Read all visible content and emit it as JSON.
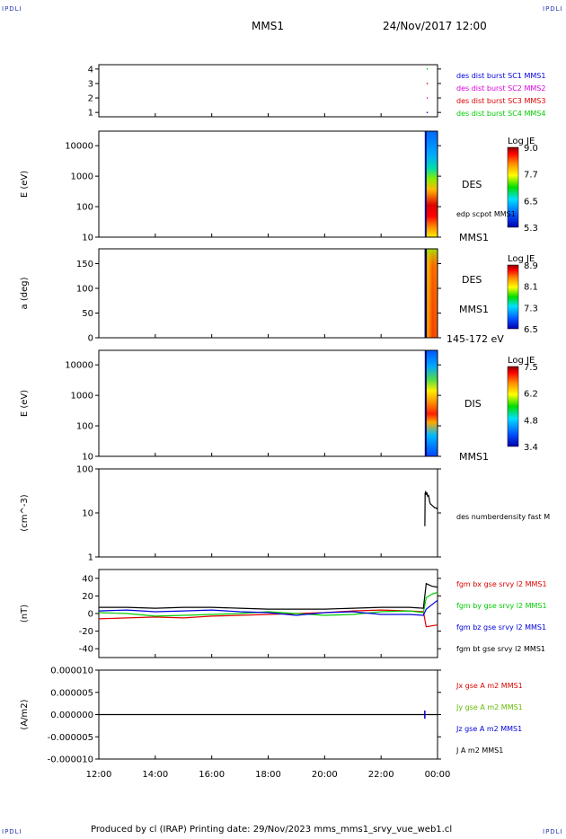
{
  "corner_label": "IPDLI",
  "header": {
    "spacecraft": "MMS1",
    "date_time": "24/Nov/2017 12:00"
  },
  "footer": {
    "text": "Produced by cl (IRAP)   Printing date: 29/Nov/2023   mms_mms1_srvy_vue_web1.cl"
  },
  "colors": {
    "mms1": "#0000dd",
    "mms2": "#dd00dd",
    "mms3": "#dd0000",
    "mms4": "#00cc00",
    "bx": "#dd0000",
    "by": "#00cc00",
    "bz": "#0000dd",
    "bt": "#000000"
  },
  "chart_data": [
    {
      "id": "p1",
      "type": "scatter",
      "yticks": [
        "1",
        "2",
        "3",
        "4"
      ],
      "ylim": [
        0.7,
        4.3
      ],
      "legend": [
        "des dist burst SC1 MMS1",
        "des dist burst SC2 MMS2",
        "des dist burst SC3 MMS3",
        "des dist burst SC4 MMS4"
      ],
      "series": [
        {
          "name": "des dist burst SC1 MMS1",
          "x": [
            23.7
          ],
          "y": [
            1
          ]
        },
        {
          "name": "des dist burst SC2 MMS2",
          "x": [
            23.7
          ],
          "y": [
            2
          ]
        },
        {
          "name": "des dist burst SC3 MMS3",
          "x": [
            23.7
          ],
          "y": [
            3
          ]
        },
        {
          "name": "des dist burst SC4 MMS4",
          "x": [
            23.7
          ],
          "y": [
            4
          ]
        }
      ]
    },
    {
      "id": "p2",
      "type": "heatmap",
      "ylabel": "E (eV)",
      "yticks": [
        "10",
        "100",
        "1000",
        "10000"
      ],
      "ylog": true,
      "ylim": [
        10,
        30000
      ],
      "label": "DES",
      "sublabel": "edp scpot MMS1",
      "bottom_label": "MMS1",
      "colorbar": {
        "title": "Log JE",
        "ticks": [
          "9.0",
          "7.7",
          "6.5",
          "5.3"
        ]
      },
      "x_range": [
        23.55,
        24.0
      ]
    },
    {
      "id": "p3",
      "type": "heatmap",
      "ylabel": "a (deg)",
      "yticks": [
        "0",
        "50",
        "100",
        "150"
      ],
      "ylim": [
        0,
        180
      ],
      "label": "DES",
      "sublabel": "MMS1",
      "bottom_label": "145-172 eV",
      "colorbar": {
        "title": "Log JE",
        "ticks": [
          "8.9",
          "8.1",
          "7.3",
          "6.5"
        ]
      },
      "x_range": [
        23.55,
        24.0
      ]
    },
    {
      "id": "p4",
      "type": "heatmap",
      "ylabel": "E (eV)",
      "yticks": [
        "10",
        "100",
        "1000",
        "10000"
      ],
      "ylog": true,
      "ylim": [
        10,
        30000
      ],
      "label": "DIS",
      "bottom_label": "MMS1",
      "colorbar": {
        "title": "Log JE",
        "ticks": [
          "7.5",
          "6.2",
          "4.8",
          "3.4"
        ]
      },
      "x_range": [
        23.55,
        24.0
      ]
    },
    {
      "id": "p5",
      "type": "line",
      "ylabel": "(cm^-3)",
      "yticks": [
        "1",
        "10",
        "100"
      ],
      "ylog": true,
      "ylim": [
        1,
        100
      ],
      "legend": [
        "des numberdensity fast M"
      ],
      "series": [
        {
          "name": "des numberdensity fast M",
          "x": [
            23.55,
            23.56,
            23.58,
            23.6,
            23.62,
            23.65,
            23.68,
            23.7,
            23.72,
            23.75,
            23.8,
            23.85,
            23.9,
            23.95,
            24.0
          ],
          "y": [
            5,
            28,
            30,
            26,
            29,
            24,
            25,
            22,
            18,
            16,
            15,
            14,
            13,
            13,
            12
          ]
        }
      ]
    },
    {
      "id": "p6",
      "type": "line",
      "ylabel": "(nT)",
      "yticks": [
        "-40",
        "-20",
        "0",
        "20",
        "40"
      ],
      "ylim": [
        -50,
        50
      ],
      "legend": [
        "fgm bx gse srvy l2 MMS1",
        "fgm by gse srvy l2 MMS1",
        "fgm bz gse srvy l2 MMS1",
        "fgm bt gse srvy l2 MMS1"
      ],
      "series": [
        {
          "name": "fgm bx gse srvy l2 MMS1",
          "x": [
            12,
            13,
            14,
            15,
            16,
            17,
            18,
            19,
            20,
            21,
            22,
            23,
            23.5,
            23.6,
            23.8,
            24
          ],
          "y": [
            -6,
            -5,
            -4,
            -5,
            -3,
            -2,
            -1,
            0,
            1,
            3,
            4,
            3,
            2,
            -15,
            -14,
            -13
          ]
        },
        {
          "name": "fgm by gse srvy l2 MMS1",
          "x": [
            12,
            13,
            14,
            15,
            16,
            17,
            18,
            19,
            20,
            21,
            22,
            23,
            23.5,
            23.6,
            23.8,
            24
          ],
          "y": [
            1,
            0,
            -3,
            -2,
            -1,
            0,
            2,
            0,
            -2,
            -1,
            2,
            3,
            1,
            18,
            22,
            24
          ]
        },
        {
          "name": "fgm bz gse srvy l2 MMS1",
          "x": [
            12,
            13,
            14,
            15,
            16,
            17,
            18,
            19,
            20,
            21,
            22,
            23,
            23.5,
            23.6,
            23.8,
            24
          ],
          "y": [
            3,
            4,
            2,
            3,
            4,
            2,
            1,
            -2,
            1,
            2,
            -1,
            -1,
            -2,
            5,
            10,
            15
          ]
        },
        {
          "name": "fgm bt gse srvy l2 MMS1",
          "x": [
            12,
            13,
            14,
            15,
            16,
            17,
            18,
            19,
            20,
            21,
            22,
            23,
            23.5,
            23.6,
            23.8,
            24
          ],
          "y": [
            7,
            7,
            6,
            7,
            7,
            6,
            5,
            5,
            5,
            6,
            7,
            7,
            6,
            34,
            31,
            30
          ]
        }
      ]
    },
    {
      "id": "p7",
      "type": "line",
      "ylabel": "(A/m2)",
      "yticks": [
        "-0.000010",
        "-0.000005",
        "0.000000",
        "0.000005",
        "0.000010"
      ],
      "ylim": [
        -1e-05,
        1e-05
      ],
      "legend": [
        "Jx gse A m2 MMS1",
        "Jy gse A m2 MMS1",
        "Jz gse A m2 MMS1",
        "J A m2 MMS1"
      ],
      "series": [
        {
          "name": "J A m2 MMS1",
          "x": [
            12,
            24
          ],
          "y": [
            0,
            0
          ]
        }
      ]
    }
  ],
  "x_axis": {
    "ticks": [
      "12:00",
      "14:00",
      "16:00",
      "18:00",
      "20:00",
      "22:00",
      "00:00"
    ],
    "xlim": [
      12,
      24
    ]
  }
}
